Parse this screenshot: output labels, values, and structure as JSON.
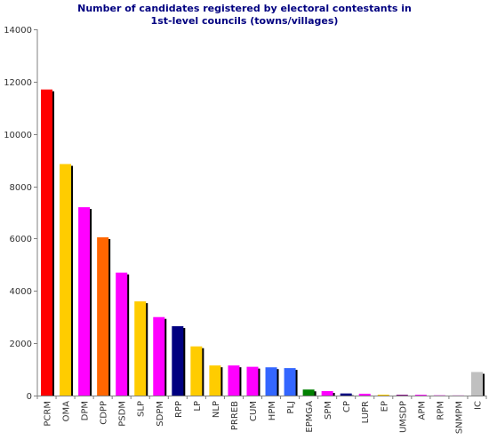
{
  "chart_data": {
    "type": "bar",
    "title_line1": "Number of candidates registered by electoral contestants in",
    "title_line2": "1st-level councils (towns/villages)",
    "xlabel": "",
    "ylabel": "",
    "ylim": [
      0,
      14000
    ],
    "yticks": [
      "0",
      "2000",
      "4000",
      "6000",
      "8000",
      "10000",
      "12000",
      "14000"
    ],
    "grid": false,
    "categories": [
      "PCRM",
      "OMA",
      "DPM",
      "CDPP",
      "PSDM",
      "SLP",
      "SDPM",
      "RPP",
      "LP",
      "NLP",
      "PRREB",
      "CUM",
      "HPM",
      "PLJ",
      "EPMGA",
      "SPM",
      "CP",
      "LUPR",
      "EP",
      "UMSDP",
      "APM",
      "RPM",
      "SNMPM",
      "IC"
    ],
    "values": [
      11700,
      8850,
      7200,
      6050,
      4700,
      3600,
      3000,
      2650,
      1880,
      1150,
      1150,
      1100,
      1080,
      1050,
      230,
      170,
      80,
      70,
      35,
      30,
      30,
      10,
      5,
      900
    ],
    "colors": [
      "#ff0000",
      "#ffcc00",
      "#ff00ff",
      "#ff6600",
      "#ff00ff",
      "#ffcc00",
      "#ff00ff",
      "#000080",
      "#ffcc00",
      "#ffcc00",
      "#ff00ff",
      "#ff00ff",
      "#3366ff",
      "#3366ff",
      "#008000",
      "#ff00ff",
      "#000080",
      "#ff00ff",
      "#ffcc00",
      "#800080",
      "#ff00ff",
      "#ff00ff",
      "#ff00ff",
      "#c0c0c0"
    ]
  }
}
